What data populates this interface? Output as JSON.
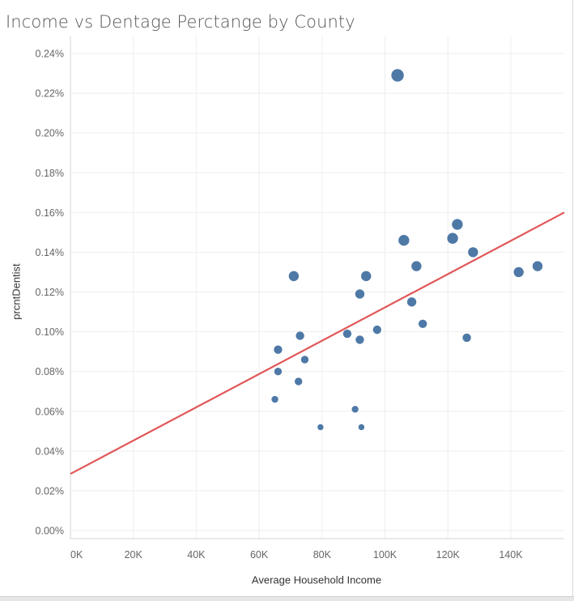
{
  "chart_data": {
    "type": "scatter",
    "title": "Income vs Dentage Perctange by County",
    "xlabel": "Average Household Income",
    "ylabel": "prcntDentist",
    "xlim": [
      0,
      157000
    ],
    "ylim": [
      0,
      0.00245
    ],
    "x_ticks": [
      {
        "value": 0,
        "label": "0K"
      },
      {
        "value": 20000,
        "label": "20K"
      },
      {
        "value": 40000,
        "label": "40K"
      },
      {
        "value": 60000,
        "label": "60K"
      },
      {
        "value": 80000,
        "label": "80K"
      },
      {
        "value": 100000,
        "label": "100K"
      },
      {
        "value": 120000,
        "label": "120K"
      },
      {
        "value": 140000,
        "label": "140K"
      }
    ],
    "y_ticks": [
      {
        "value": 0.0,
        "label": "0.00%"
      },
      {
        "value": 0.0002,
        "label": "0.02%"
      },
      {
        "value": 0.0004,
        "label": "0.04%"
      },
      {
        "value": 0.0006,
        "label": "0.06%"
      },
      {
        "value": 0.0008,
        "label": "0.08%"
      },
      {
        "value": 0.001,
        "label": "0.10%"
      },
      {
        "value": 0.0012,
        "label": "0.12%"
      },
      {
        "value": 0.0014,
        "label": "0.14%"
      },
      {
        "value": 0.0016,
        "label": "0.16%"
      },
      {
        "value": 0.0018,
        "label": "0.18%"
      },
      {
        "value": 0.002,
        "label": "0.20%"
      },
      {
        "value": 0.0022,
        "label": "0.22%"
      },
      {
        "value": 0.0024,
        "label": "0.24%"
      }
    ],
    "grid": true,
    "marker_color": "#4e79a7",
    "trend_line": {
      "color": "#e15759",
      "x": [
        0,
        157000
      ],
      "y": [
        0.000285,
        0.0016
      ]
    },
    "points": [
      {
        "x": 104000,
        "y": 0.00229,
        "size": 8
      },
      {
        "x": 123000,
        "y": 0.00154,
        "size": 7
      },
      {
        "x": 106000,
        "y": 0.00146,
        "size": 7
      },
      {
        "x": 121500,
        "y": 0.00147,
        "size": 7
      },
      {
        "x": 128000,
        "y": 0.0014,
        "size": 6.5
      },
      {
        "x": 110000,
        "y": 0.00133,
        "size": 6.5
      },
      {
        "x": 148500,
        "y": 0.00133,
        "size": 6.5
      },
      {
        "x": 142500,
        "y": 0.0013,
        "size": 6.5
      },
      {
        "x": 71000,
        "y": 0.00128,
        "size": 6.5
      },
      {
        "x": 94000,
        "y": 0.00128,
        "size": 6.5
      },
      {
        "x": 92000,
        "y": 0.00119,
        "size": 6
      },
      {
        "x": 108500,
        "y": 0.00115,
        "size": 6
      },
      {
        "x": 112000,
        "y": 0.00104,
        "size": 5.5
      },
      {
        "x": 97500,
        "y": 0.00101,
        "size": 5.5
      },
      {
        "x": 88000,
        "y": 0.00099,
        "size": 5.5
      },
      {
        "x": 73000,
        "y": 0.00098,
        "size": 5.5
      },
      {
        "x": 126000,
        "y": 0.00097,
        "size": 5.5
      },
      {
        "x": 92000,
        "y": 0.00096,
        "size": 5.5
      },
      {
        "x": 66000,
        "y": 0.00091,
        "size": 5.5
      },
      {
        "x": 74500,
        "y": 0.00086,
        "size": 5
      },
      {
        "x": 66000,
        "y": 0.0008,
        "size": 5
      },
      {
        "x": 72500,
        "y": 0.00075,
        "size": 5
      },
      {
        "x": 65000,
        "y": 0.00066,
        "size": 4.5
      },
      {
        "x": 90500,
        "y": 0.00061,
        "size": 4.5
      },
      {
        "x": 79500,
        "y": 0.00052,
        "size": 4
      },
      {
        "x": 92500,
        "y": 0.00052,
        "size": 4
      }
    ]
  }
}
